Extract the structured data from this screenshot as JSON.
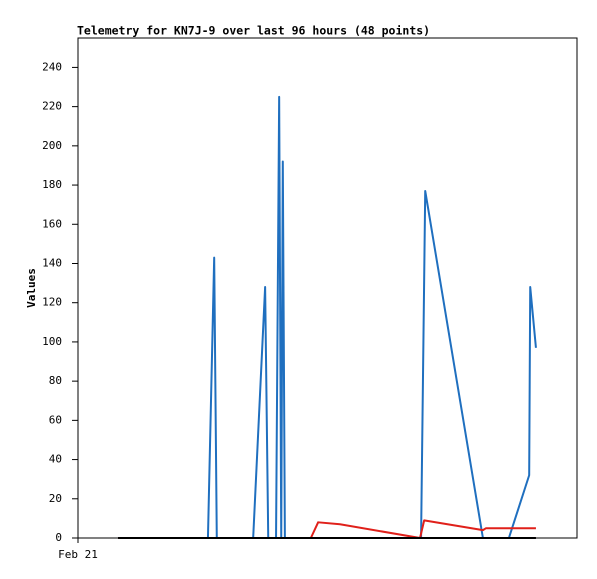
{
  "chart_data": {
    "type": "line",
    "title": "Telemetry for KN7J-9 over last 96 hours (48 points)",
    "ylabel": "Values",
    "xlim": [
      0,
      96
    ],
    "xticks": [
      {
        "value": 0,
        "label": "Feb 21"
      }
    ],
    "ylim": [
      0,
      255
    ],
    "yticks": [
      0,
      20,
      40,
      60,
      80,
      100,
      120,
      140,
      160,
      180,
      200,
      220,
      240
    ],
    "grid": false,
    "series": [
      {
        "color": "#1f6fbf",
        "x": [
          7.7,
          25,
          26.2,
          26.7,
          33.7,
          36,
          36.6,
          38.1,
          38.7,
          39.1,
          39.4,
          39.8,
          66,
          66.8,
          77.9,
          82.9,
          86.8,
          87,
          88.1
        ],
        "values": [
          0,
          0,
          143,
          0,
          0,
          128,
          0,
          0,
          225,
          0,
          192,
          0,
          0,
          177,
          0,
          0,
          32,
          128,
          97
        ]
      },
      {
        "color": "#e0201a",
        "x": [
          7.7,
          44.8,
          46.2,
          50.4,
          65.8,
          66.6,
          77.9,
          78.5,
          88.1
        ],
        "values": [
          0,
          0,
          8,
          7,
          0,
          9,
          4,
          5,
          5
        ]
      },
      {
        "color": "#000000",
        "x": [
          7.7,
          88.1
        ],
        "values": [
          0,
          0
        ]
      }
    ]
  }
}
